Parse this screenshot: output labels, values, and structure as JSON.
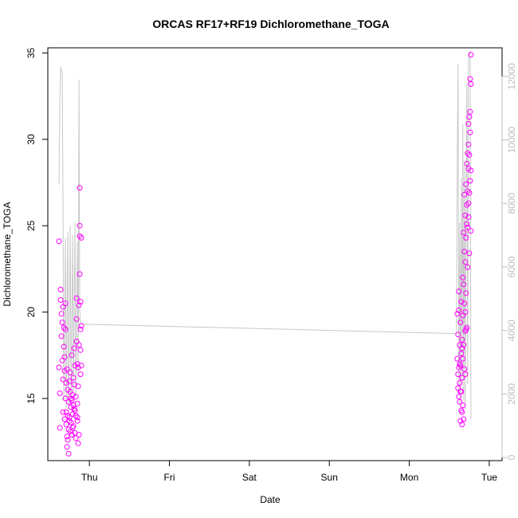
{
  "chart_data": {
    "type": "scatter",
    "title": "ORCAS RF17+RF19 Dichloromethane_TOGA",
    "xlabel": "Date",
    "ylabel": "Dichloromethane_TOGA",
    "x_ticks": [
      "Thu",
      "Fri",
      "Sat",
      "Sun",
      "Mon",
      "Tue"
    ],
    "x_tick_days": [
      0,
      1,
      2,
      3,
      4,
      5
    ],
    "xlim": [
      -0.52,
      5.16
    ],
    "y_ticks": [
      15,
      20,
      25,
      30,
      35
    ],
    "ylim": [
      11.4,
      35.3
    ],
    "y2_ticks": [
      0,
      2000,
      4000,
      6000,
      8000,
      10000,
      12000
    ],
    "y2lim": [
      -100,
      12900
    ],
    "point_color": "#ff00ff",
    "line_color": "#c8c8c8",
    "right_axis_color": "#bdbdbd",
    "grid": false,
    "series": [
      {
        "points_day": [
          [
            -0.38,
            24.1
          ],
          [
            -0.38,
            16.8
          ],
          [
            -0.37,
            15.3
          ],
          [
            -0.37,
            13.3
          ],
          [
            -0.36,
            21.3
          ],
          [
            -0.36,
            20.7
          ],
          [
            -0.35,
            19.9
          ],
          [
            -0.35,
            18.6
          ],
          [
            -0.34,
            19.4
          ],
          [
            -0.34,
            17.2
          ],
          [
            -0.33,
            16.1
          ],
          [
            -0.33,
            20.3
          ],
          [
            -0.32,
            19.1
          ],
          [
            -0.32,
            18.0
          ],
          [
            -0.31,
            17.4
          ],
          [
            -0.31,
            16.6
          ],
          [
            -0.3,
            20.5
          ],
          [
            -0.3,
            19.0
          ],
          [
            -0.3,
            15.0
          ],
          [
            -0.29,
            14.2
          ],
          [
            -0.29,
            13.5
          ],
          [
            -0.28,
            12.8
          ],
          [
            -0.28,
            12.2
          ],
          [
            -0.28,
            16.7
          ],
          [
            -0.27,
            15.5
          ],
          [
            -0.27,
            14.0
          ],
          [
            -0.26,
            13.2
          ],
          [
            -0.26,
            11.8
          ],
          [
            -0.26,
            14.8
          ],
          [
            -0.25,
            16.0
          ],
          [
            -0.25,
            13.9
          ],
          [
            -0.24,
            13.1
          ],
          [
            -0.24,
            15.4
          ],
          [
            -0.24,
            16.5
          ],
          [
            -0.23,
            14.5
          ],
          [
            -0.23,
            13.6
          ],
          [
            -0.22,
            14.9
          ],
          [
            -0.22,
            17.5
          ],
          [
            -0.22,
            12.9
          ],
          [
            -0.21,
            14.1
          ],
          [
            -0.21,
            15.2
          ],
          [
            -0.2,
            16.2
          ],
          [
            -0.2,
            13.4
          ],
          [
            -0.2,
            14.6
          ],
          [
            -0.19,
            15.8
          ],
          [
            -0.19,
            17.9
          ],
          [
            -0.18,
            13.0
          ],
          [
            -0.18,
            14.3
          ],
          [
            -0.18,
            16.9
          ],
          [
            -0.17,
            15.1
          ],
          [
            -0.17,
            14.0
          ],
          [
            -0.16,
            20.8
          ],
          [
            -0.16,
            19.6
          ],
          [
            -0.16,
            18.3
          ],
          [
            -0.15,
            14.7
          ],
          [
            -0.15,
            13.7
          ],
          [
            -0.15,
            17.0
          ],
          [
            -0.14,
            16.8
          ],
          [
            -0.14,
            15.7
          ],
          [
            -0.14,
            12.4
          ],
          [
            -0.13,
            20.4
          ],
          [
            -0.13,
            18.1
          ],
          [
            -0.13,
            12.9
          ],
          [
            -0.12,
            27.2
          ],
          [
            -0.12,
            24.4
          ],
          [
            -0.12,
            22.2
          ],
          [
            -0.12,
            25.0
          ],
          [
            -0.11,
            19.0
          ],
          [
            -0.11,
            17.8
          ],
          [
            -0.11,
            16.4
          ],
          [
            -0.11,
            20.6
          ],
          [
            -0.1,
            24.3
          ],
          [
            -0.1,
            19.2
          ],
          [
            -0.1,
            16.9
          ],
          [
            -0.33,
            14.2
          ],
          [
            -0.31,
            13.8
          ],
          [
            -0.29,
            15.9
          ],
          [
            -0.27,
            12.6
          ],
          [
            -0.25,
            13.7
          ],
          [
            -0.23,
            15.0
          ],
          [
            -0.21,
            13.3
          ],
          [
            -0.19,
            14.4
          ],
          [
            -0.17,
            12.7
          ],
          [
            -0.15,
            13.9
          ],
          [
            4.6,
            19.9
          ],
          [
            4.6,
            17.3
          ],
          [
            4.61,
            16.4
          ],
          [
            4.61,
            18.7
          ],
          [
            4.62,
            15.1
          ],
          [
            4.62,
            21.2
          ],
          [
            4.62,
            20.1
          ],
          [
            4.63,
            17.0
          ],
          [
            4.63,
            15.9
          ],
          [
            4.63,
            14.8
          ],
          [
            4.64,
            13.7
          ],
          [
            4.64,
            16.9
          ],
          [
            4.64,
            19.4
          ],
          [
            4.65,
            17.6
          ],
          [
            4.65,
            15.4
          ],
          [
            4.65,
            14.3
          ],
          [
            4.66,
            18.4
          ],
          [
            4.66,
            16.2
          ],
          [
            4.66,
            13.5
          ],
          [
            4.67,
            19.8
          ],
          [
            4.67,
            17.3
          ],
          [
            4.67,
            22.0
          ],
          [
            4.68,
            24.6
          ],
          [
            4.68,
            21.6
          ],
          [
            4.68,
            18.1
          ],
          [
            4.69,
            26.8
          ],
          [
            4.69,
            23.5
          ],
          [
            4.69,
            20.5
          ],
          [
            4.7,
            25.6
          ],
          [
            4.7,
            22.9
          ],
          [
            4.7,
            16.4
          ],
          [
            4.71,
            27.4
          ],
          [
            4.71,
            24.3
          ],
          [
            4.71,
            21.1
          ],
          [
            4.72,
            28.6
          ],
          [
            4.72,
            26.2
          ],
          [
            4.72,
            19.1
          ],
          [
            4.73,
            29.2
          ],
          [
            4.73,
            27.0
          ],
          [
            4.73,
            24.9
          ],
          [
            4.74,
            30.9
          ],
          [
            4.74,
            28.3
          ],
          [
            4.74,
            25.5
          ],
          [
            4.75,
            31.3
          ],
          [
            4.75,
            29.1
          ],
          [
            4.75,
            26.9
          ],
          [
            4.76,
            33.5
          ],
          [
            4.76,
            30.4
          ],
          [
            4.76,
            27.6
          ],
          [
            4.77,
            34.9
          ],
          [
            4.77,
            33.2
          ],
          [
            4.77,
            24.7
          ],
          [
            4.61,
            15.6
          ],
          [
            4.63,
            18.1
          ],
          [
            4.65,
            20.6
          ],
          [
            4.67,
            14.6
          ],
          [
            4.69,
            16.7
          ],
          [
            4.71,
            19.0
          ],
          [
            4.73,
            22.6
          ],
          [
            4.75,
            23.4
          ],
          [
            4.64,
            15.4
          ],
          [
            4.66,
            17.9
          ],
          [
            4.68,
            13.8
          ],
          [
            4.7,
            20.0
          ],
          [
            4.72,
            25.1
          ],
          [
            4.74,
            26.3
          ],
          [
            4.76,
            31.6
          ],
          [
            4.77,
            28.2
          ],
          [
            4.62,
            16.8
          ],
          [
            4.66,
            14.2
          ],
          [
            4.7,
            18.9
          ],
          [
            4.74,
            29.7
          ]
        ],
        "line_y2": [
          [
            -0.38,
            8600
          ],
          [
            -0.37,
            11200
          ],
          [
            -0.36,
            12300
          ],
          [
            -0.34,
            12100
          ],
          [
            -0.33,
            7800
          ],
          [
            -0.32,
            1800
          ],
          [
            -0.3,
            6900
          ],
          [
            -0.29,
            1500
          ],
          [
            -0.27,
            7100
          ],
          [
            -0.26,
            1400
          ],
          [
            -0.24,
            7300
          ],
          [
            -0.23,
            1700
          ],
          [
            -0.21,
            7000
          ],
          [
            -0.2,
            2100
          ],
          [
            -0.18,
            7400
          ],
          [
            -0.17,
            1900
          ],
          [
            -0.15,
            6800
          ],
          [
            -0.14,
            2500
          ],
          [
            -0.13,
            11900
          ],
          [
            -0.12,
            4600
          ],
          [
            -0.11,
            4300
          ],
          [
            -0.1,
            4200
          ],
          [
            4.59,
            3900
          ],
          [
            4.6,
            9500
          ],
          [
            4.61,
            12400
          ],
          [
            4.62,
            2000
          ],
          [
            4.63,
            7400
          ],
          [
            4.64,
            1700
          ],
          [
            4.65,
            8800
          ],
          [
            4.66,
            2400
          ],
          [
            4.67,
            10500
          ],
          [
            4.68,
            1800
          ],
          [
            4.69,
            9200
          ],
          [
            4.7,
            1500
          ],
          [
            4.71,
            8100
          ],
          [
            4.72,
            11800
          ],
          [
            4.73,
            2300
          ],
          [
            4.74,
            12600
          ],
          [
            4.75,
            12700
          ],
          [
            4.76,
            12800
          ],
          [
            4.77,
            1200
          ]
        ]
      }
    ]
  }
}
